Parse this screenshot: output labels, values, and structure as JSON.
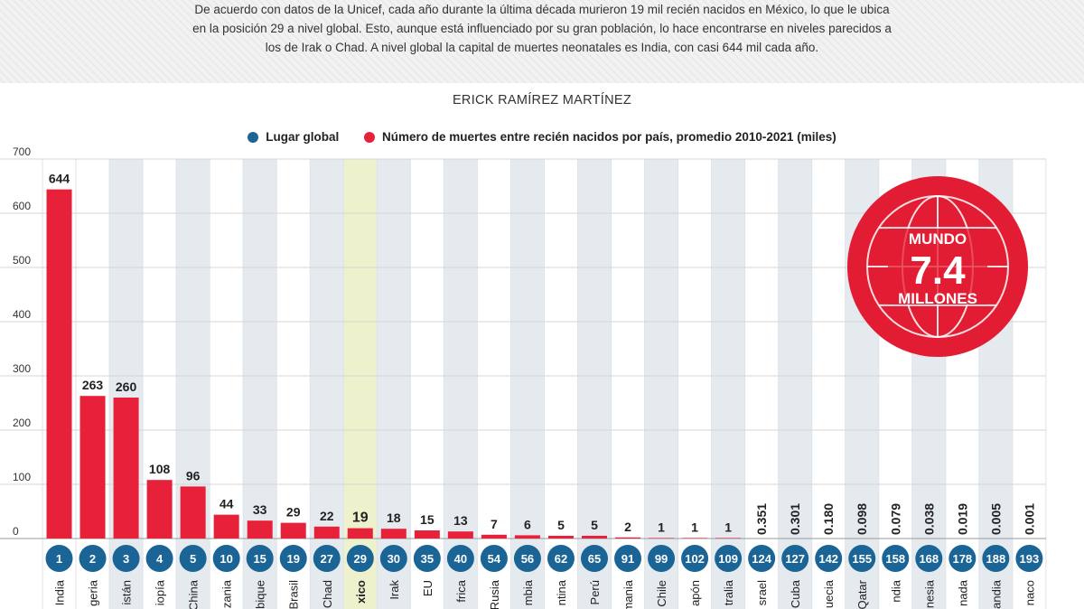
{
  "intro": {
    "line1": "De acuerdo con datos de la Unicef, cada año durante la última década murieron 19 mil recién nacidos en México, lo que le ubica",
    "line2": "en la posición 29 a nivel global. Esto, aunque está influenciado por su gran población, lo hace encontrarse en niveles parecidos a",
    "line3": "los de Irak o Chad. A nivel global la capital de muertes neonatales es India, con casi 644 mil cada año."
  },
  "author": "ERICK RAMÍREZ MARTÍNEZ",
  "legend": {
    "rank_label": "Lugar global",
    "deaths_label": "Número de muertes entre recién nacidos por país, promedio 2010-2021 (miles)"
  },
  "world_badge": {
    "top": "MUNDO",
    "value": "7.4",
    "bottom": "MILLONES",
    "icon": "globe-icon"
  },
  "colors": {
    "bar": "#e8213a",
    "rank_circle": "#1a6496",
    "highlight_band": "#eef2cc",
    "alt_band": "#e5eaef",
    "badge": "#e21c33"
  },
  "chart_data": {
    "type": "bar",
    "title": "",
    "xlabel": "",
    "ylabel": "",
    "ylim": [
      0,
      700
    ],
    "yticks": [
      0,
      100,
      200,
      300,
      400,
      500,
      600,
      700
    ],
    "grid": true,
    "legend_position": "top-center",
    "highlight_category": "Mexico",
    "categories": [
      "India",
      "Nigeria",
      "Pakistán",
      "Etiopía",
      "China",
      "Tanzania",
      "Mozambique",
      "Brasil",
      "Chad",
      "Mexico",
      "Irak",
      "EU",
      "Sudáfrica",
      "Rusia",
      "Colombia",
      "Argentina",
      "Perú",
      "Rumania",
      "Chile",
      "Japón",
      "Australia",
      "Israel",
      "Cuba",
      "Suecia",
      "Qatar",
      "Finlandia",
      "Indonesia",
      "Granada",
      "Islandia",
      "Mónaco"
    ],
    "visible_labels": [
      "India",
      "geria",
      "istán",
      "iopía",
      "China",
      "zania",
      "bique",
      "Brasil",
      "Chad",
      "xico",
      "Irak",
      "EU",
      "frica",
      "Rusia",
      "mbia",
      "ntina",
      "Perú",
      "mania",
      "Chile",
      "apón",
      "tralia",
      "srael",
      "Cuba",
      "uecia",
      "Qatar",
      "ndia",
      "nesia",
      "nada",
      "landia",
      "naco"
    ],
    "rank": [
      1,
      2,
      3,
      4,
      5,
      10,
      15,
      19,
      27,
      29,
      30,
      35,
      40,
      54,
      56,
      62,
      65,
      91,
      99,
      102,
      109,
      124,
      127,
      142,
      155,
      158,
      168,
      178,
      188,
      193
    ],
    "values": [
      644,
      263,
      260,
      108,
      96,
      44,
      33,
      29,
      22,
      19,
      18,
      15,
      13,
      7,
      6,
      5,
      5,
      2,
      1,
      1,
      1,
      0.351,
      0.301,
      0.18,
      0.098,
      0.079,
      0.038,
      0.019,
      0.005,
      0.001
    ],
    "value_labels": [
      "644",
      "263",
      "260",
      "108",
      "96",
      "44",
      "33",
      "29",
      "22",
      "19",
      "18",
      "15",
      "13",
      "7",
      "6",
      "5",
      "5",
      "2",
      "1",
      "1",
      "1",
      "0.351",
      "0.301",
      "0.180",
      "0.098",
      "0.079",
      "0.038",
      "0.019",
      "0.005",
      "0.001"
    ]
  }
}
